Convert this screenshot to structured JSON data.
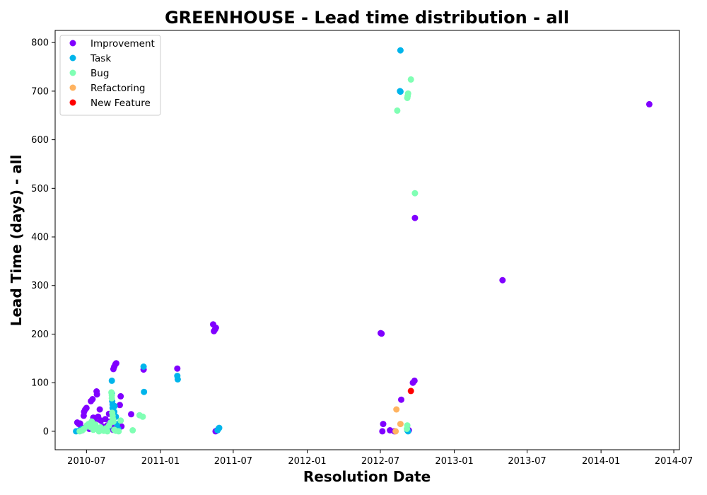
{
  "chart_data": {
    "type": "scatter",
    "title": "GREENHOUSE - Lead time distribution - all",
    "xlabel": "Resolution Date",
    "ylabel": "Lead Time (days) - all",
    "x_type": "date",
    "xlim": [
      "2010-04-14",
      "2014-07-15"
    ],
    "ylim": [
      -38,
      825
    ],
    "x_ticks": [
      "2010-07",
      "2011-01",
      "2011-07",
      "2012-01",
      "2012-07",
      "2013-01",
      "2013-07",
      "2014-01",
      "2014-07"
    ],
    "y_ticks": [
      0,
      100,
      200,
      300,
      400,
      500,
      600,
      700,
      800
    ],
    "grid": false,
    "legend_position": "upper-left",
    "series": [
      {
        "name": "Improvement",
        "color": "#8000ff",
        "points": [
          [
            "2010-06-08",
            18
          ],
          [
            "2010-06-12",
            15
          ],
          [
            "2010-06-15",
            16
          ],
          [
            "2010-06-18",
            8
          ],
          [
            "2010-06-20",
            2
          ],
          [
            "2010-06-24",
            32
          ],
          [
            "2010-06-25",
            40
          ],
          [
            "2010-06-28",
            45
          ],
          [
            "2010-07-01",
            48
          ],
          [
            "2010-07-04",
            10
          ],
          [
            "2010-07-08",
            5
          ],
          [
            "2010-07-12",
            62
          ],
          [
            "2010-07-16",
            66
          ],
          [
            "2010-07-18",
            28
          ],
          [
            "2010-07-22",
            20
          ],
          [
            "2010-07-26",
            82
          ],
          [
            "2010-07-27",
            76
          ],
          [
            "2010-07-30",
            30
          ],
          [
            "2010-08-03",
            45
          ],
          [
            "2010-08-06",
            22
          ],
          [
            "2010-08-10",
            10
          ],
          [
            "2010-08-12",
            5
          ],
          [
            "2010-08-17",
            25
          ],
          [
            "2010-08-22",
            12
          ],
          [
            "2010-08-26",
            36
          ],
          [
            "2010-08-29",
            20
          ],
          [
            "2010-09-02",
            8
          ],
          [
            "2010-09-05",
            3
          ],
          [
            "2010-09-06",
            128
          ],
          [
            "2010-09-08",
            133
          ],
          [
            "2010-09-11",
            138
          ],
          [
            "2010-09-13",
            140
          ],
          [
            "2010-09-17",
            12
          ],
          [
            "2010-09-22",
            54
          ],
          [
            "2010-09-24",
            72
          ],
          [
            "2010-09-26",
            10
          ],
          [
            "2010-10-20",
            35
          ],
          [
            "2010-11-20",
            127
          ],
          [
            "2011-02-12",
            129
          ],
          [
            "2011-05-12",
            220
          ],
          [
            "2011-05-14",
            206
          ],
          [
            "2011-05-17",
            210
          ],
          [
            "2011-05-19",
            213
          ],
          [
            "2011-05-18",
            0
          ],
          [
            "2011-05-22",
            2
          ],
          [
            "2012-07-02",
            202
          ],
          [
            "2012-07-04",
            201
          ],
          [
            "2012-07-08",
            15
          ],
          [
            "2012-07-06",
            0
          ],
          [
            "2012-07-25",
            2
          ],
          [
            "2012-08-05",
            0
          ],
          [
            "2012-08-22",
            65
          ],
          [
            "2012-09-10",
            2
          ],
          [
            "2012-09-20",
            100
          ],
          [
            "2012-09-24",
            104
          ],
          [
            "2012-09-25",
            439
          ],
          [
            "2013-05-01",
            311
          ],
          [
            "2014-05-01",
            673
          ]
        ]
      },
      {
        "name": "Task",
        "color": "#00b5eb",
        "points": [
          [
            "2010-06-05",
            0
          ],
          [
            "2010-06-14",
            2
          ],
          [
            "2010-06-20",
            5
          ],
          [
            "2010-07-15",
            10
          ],
          [
            "2010-08-12",
            3
          ],
          [
            "2010-08-25",
            10
          ],
          [
            "2010-09-02",
            104
          ],
          [
            "2010-09-02",
            78
          ],
          [
            "2010-09-03",
            62
          ],
          [
            "2010-09-04",
            55
          ],
          [
            "2010-09-04",
            48
          ],
          [
            "2010-09-08",
            40
          ],
          [
            "2010-09-09",
            52
          ],
          [
            "2010-09-12",
            30
          ],
          [
            "2010-09-15",
            15
          ],
          [
            "2010-09-18",
            5
          ],
          [
            "2010-11-20",
            133
          ],
          [
            "2010-11-21",
            81
          ],
          [
            "2011-02-12",
            114
          ],
          [
            "2011-02-13",
            107
          ],
          [
            "2011-05-23",
            2
          ],
          [
            "2011-05-26",
            6
          ],
          [
            "2011-05-27",
            7
          ],
          [
            "2012-08-20",
            784
          ],
          [
            "2012-08-19",
            700
          ],
          [
            "2012-08-20",
            699
          ],
          [
            "2012-09-06",
            2
          ],
          [
            "2012-09-08",
            0
          ]
        ]
      },
      {
        "name": "Bug",
        "color": "#80ffb4",
        "points": [
          [
            "2010-06-14",
            0
          ],
          [
            "2010-06-17",
            1
          ],
          [
            "2010-06-22",
            3
          ],
          [
            "2010-06-26",
            6
          ],
          [
            "2010-07-02",
            12
          ],
          [
            "2010-07-06",
            15
          ],
          [
            "2010-07-10",
            9
          ],
          [
            "2010-07-14",
            20
          ],
          [
            "2010-07-18",
            3
          ],
          [
            "2010-07-23",
            14
          ],
          [
            "2010-07-27",
            5
          ],
          [
            "2010-08-01",
            0
          ],
          [
            "2010-08-05",
            8
          ],
          [
            "2010-08-09",
            2
          ],
          [
            "2010-08-13",
            1
          ],
          [
            "2010-08-18",
            6
          ],
          [
            "2010-08-22",
            0
          ],
          [
            "2010-08-26",
            12
          ],
          [
            "2010-08-30",
            18
          ],
          [
            "2010-09-01",
            80
          ],
          [
            "2010-09-02",
            74
          ],
          [
            "2010-09-02",
            68
          ],
          [
            "2010-09-03",
            38
          ],
          [
            "2010-09-04",
            32
          ],
          [
            "2010-09-05",
            25
          ],
          [
            "2010-09-06",
            20
          ],
          [
            "2010-09-08",
            3
          ],
          [
            "2010-09-12",
            1
          ],
          [
            "2010-09-19",
            0
          ],
          [
            "2010-09-24",
            22
          ],
          [
            "2010-10-24",
            2
          ],
          [
            "2010-11-10",
            33
          ],
          [
            "2010-11-18",
            30
          ],
          [
            "2012-08-12",
            660
          ],
          [
            "2012-09-06",
            686
          ],
          [
            "2012-09-07",
            690
          ],
          [
            "2012-09-08",
            695
          ],
          [
            "2012-09-15",
            724
          ],
          [
            "2012-09-25",
            490
          ],
          [
            "2012-09-06",
            12
          ],
          [
            "2012-09-05",
            5
          ]
        ]
      },
      {
        "name": "Refactoring",
        "color": "#ffb360",
        "points": [
          [
            "2012-08-10",
            45
          ],
          [
            "2012-08-20",
            15
          ],
          [
            "2012-08-08",
            0
          ]
        ]
      },
      {
        "name": "New Feature",
        "color": "#ff0000",
        "points": [
          [
            "2012-09-15",
            83
          ]
        ]
      }
    ]
  }
}
